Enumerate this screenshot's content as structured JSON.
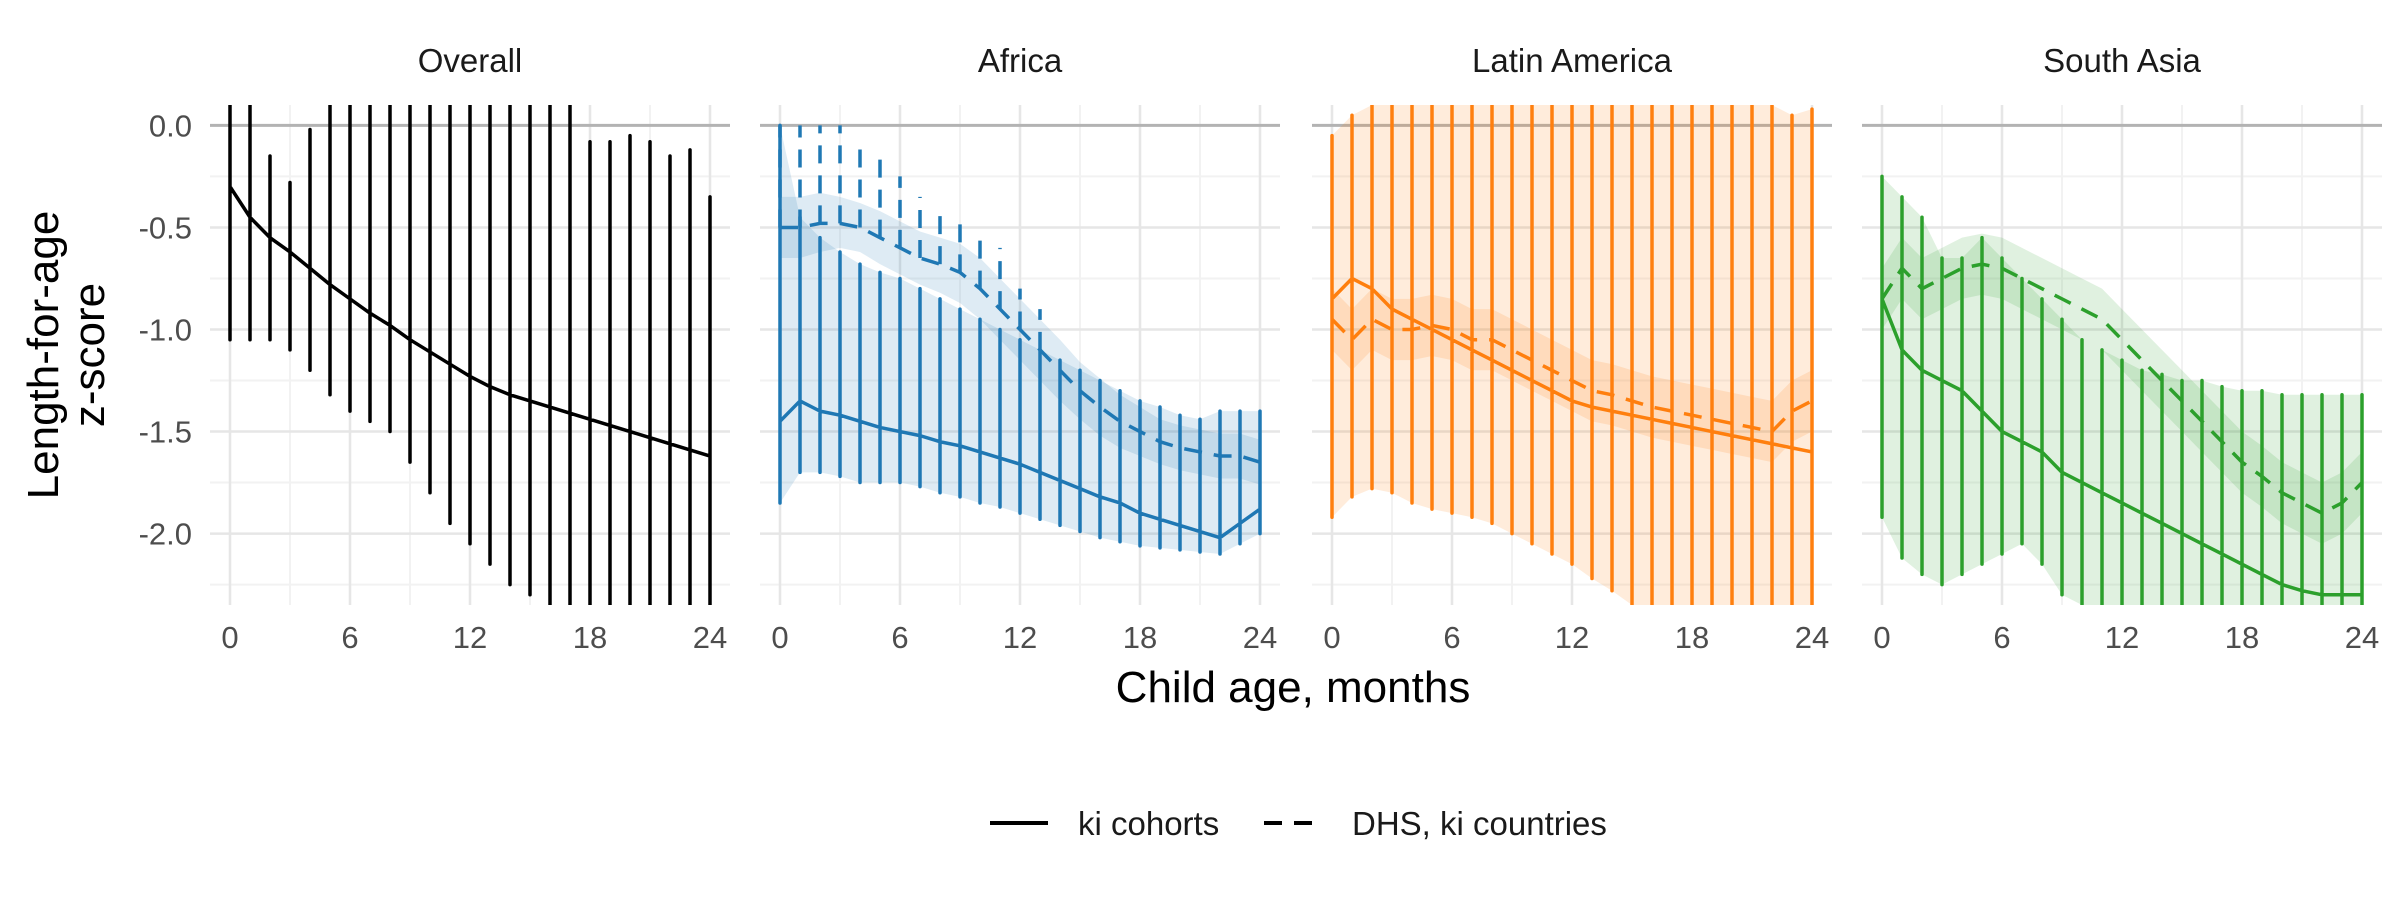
{
  "chart_data": {
    "type": "line",
    "xlabel": "Child age, months",
    "ylabel_lines": [
      "Length-for-age",
      "z-score"
    ],
    "xlim": [
      -1,
      25
    ],
    "ylim": [
      -2.35,
      0.1
    ],
    "x_ticks": [
      0,
      6,
      12,
      18,
      24
    ],
    "y_ticks": [
      0.0,
      -0.5,
      -1.0,
      -1.5,
      -2.0
    ],
    "y_tick_labels": [
      "0.0",
      "-0.5",
      "-1.0",
      "-1.5",
      "-2.0"
    ],
    "reference_line_y": 0,
    "grid": true,
    "legend_position": "bottom",
    "legend": [
      {
        "label": "ki cohorts",
        "linetype": "solid"
      },
      {
        "label": "DHS, ki countries",
        "linetype": "dashed"
      }
    ],
    "panels": [
      {
        "title": "Overall",
        "color": "#000000",
        "ki_cohorts": {
          "x": [
            0,
            1,
            2,
            3,
            4,
            5,
            6,
            7,
            8,
            9,
            10,
            11,
            12,
            13,
            14,
            15,
            16,
            17,
            18,
            19,
            20,
            21,
            22,
            23,
            24
          ],
          "y": [
            -0.3,
            -0.45,
            -0.55,
            -0.62,
            -0.7,
            -0.78,
            -0.85,
            -0.92,
            -0.98,
            -1.05,
            -1.11,
            -1.17,
            -1.23,
            -1.28,
            -1.32,
            -1.35,
            -1.38,
            -1.41,
            -1.44,
            -1.47,
            -1.5,
            -1.53,
            -1.56,
            -1.59,
            -1.62
          ],
          "lower": [
            -1.05,
            -1.05,
            -1.05,
            -1.1,
            -1.2,
            -1.32,
            -1.4,
            -1.45,
            -1.5,
            -1.65,
            -1.8,
            -1.95,
            -2.05,
            -2.15,
            -2.25,
            -2.3,
            -2.35,
            -2.35,
            -2.35,
            -2.35,
            -2.35,
            -2.35,
            -2.35,
            -2.35,
            -2.35
          ],
          "upper": [
            0.1,
            0.1,
            -0.15,
            -0.28,
            -0.02,
            0.1,
            0.1,
            0.1,
            0.1,
            0.1,
            0.1,
            0.1,
            0.1,
            0.1,
            0.1,
            0.1,
            0.1,
            0.1,
            -0.08,
            -0.08,
            -0.05,
            -0.08,
            -0.15,
            -0.12,
            -0.35
          ]
        }
      },
      {
        "title": "Africa",
        "color": "#1F78B4",
        "ki_cohorts": {
          "x": [
            0,
            1,
            2,
            3,
            4,
            5,
            6,
            7,
            8,
            9,
            10,
            11,
            12,
            13,
            14,
            15,
            16,
            17,
            18,
            19,
            20,
            21,
            22,
            23,
            24
          ],
          "y": [
            -1.45,
            -1.35,
            -1.4,
            -1.42,
            -1.45,
            -1.48,
            -1.5,
            -1.52,
            -1.55,
            -1.57,
            -1.6,
            -1.63,
            -1.66,
            -1.7,
            -1.74,
            -1.78,
            -1.82,
            -1.85,
            -1.9,
            -1.93,
            -1.96,
            -1.99,
            -2.02,
            -1.95,
            -1.88
          ],
          "lower": [
            -1.85,
            -1.7,
            -1.7,
            -1.72,
            -1.75,
            -1.75,
            -1.75,
            -1.77,
            -1.8,
            -1.82,
            -1.85,
            -1.87,
            -1.9,
            -1.93,
            -1.96,
            -1.99,
            -2.02,
            -2.04,
            -2.06,
            -2.07,
            -2.08,
            -2.09,
            -2.1,
            -2.05,
            -2.0
          ],
          "upper": [
            0.0,
            -0.45,
            -0.55,
            -0.62,
            -0.68,
            -0.72,
            -0.75,
            -0.8,
            -0.85,
            -0.9,
            -0.95,
            -1.0,
            -1.05,
            -1.1,
            -1.15,
            -1.2,
            -1.25,
            -1.3,
            -1.35,
            -1.38,
            -1.42,
            -1.44,
            -1.4,
            -1.4,
            -1.4
          ]
        },
        "dhs": {
          "x": [
            0,
            1,
            2,
            3,
            4,
            5,
            6,
            7,
            8,
            9,
            10,
            11,
            12,
            13,
            14,
            15,
            16,
            17,
            18,
            19,
            20,
            21,
            22,
            23,
            24
          ],
          "y": [
            -0.5,
            -0.5,
            -0.48,
            -0.48,
            -0.5,
            -0.55,
            -0.6,
            -0.65,
            -0.68,
            -0.72,
            -0.8,
            -0.9,
            -1.0,
            -1.1,
            -1.2,
            -1.3,
            -1.38,
            -1.45,
            -1.5,
            -1.55,
            -1.58,
            -1.6,
            -1.62,
            -1.62,
            -1.65
          ],
          "lower": [
            -0.65,
            -0.65,
            -0.62,
            -0.6,
            -0.62,
            -0.68,
            -0.73,
            -0.78,
            -0.82,
            -0.87,
            -0.95,
            -1.05,
            -1.15,
            -1.25,
            -1.35,
            -1.44,
            -1.52,
            -1.58,
            -1.62,
            -1.66,
            -1.69,
            -1.71,
            -1.73,
            -1.73,
            -1.76
          ],
          "upper": [
            -0.35,
            -0.35,
            -0.33,
            -0.35,
            -0.38,
            -0.42,
            -0.47,
            -0.52,
            -0.55,
            -0.58,
            -0.65,
            -0.75,
            -0.85,
            -0.95,
            -1.05,
            -1.16,
            -1.24,
            -1.32,
            -1.38,
            -1.44,
            -1.47,
            -1.49,
            -1.51,
            -1.51,
            -1.54
          ],
          "whisker_top": [
            0.0,
            0.0,
            0.0,
            0.0,
            -0.1,
            -0.15,
            -0.25,
            -0.35,
            -0.4,
            -0.45,
            -0.55,
            -0.6,
            -0.8,
            -0.9
          ]
        }
      },
      {
        "title": "Latin America",
        "color": "#FF7F0E",
        "ki_cohorts": {
          "x": [
            0,
            1,
            2,
            3,
            4,
            5,
            6,
            7,
            8,
            9,
            10,
            11,
            12,
            13,
            14,
            15,
            16,
            17,
            18,
            19,
            20,
            21,
            22,
            23,
            24
          ],
          "y": [
            -0.85,
            -0.75,
            -0.8,
            -0.9,
            -0.95,
            -1.0,
            -1.05,
            -1.1,
            -1.15,
            -1.2,
            -1.25,
            -1.3,
            -1.35,
            -1.38,
            -1.4,
            -1.42,
            -1.44,
            -1.46,
            -1.48,
            -1.5,
            -1.52,
            -1.54,
            -1.56,
            -1.58,
            -1.6
          ],
          "lower": [
            -1.92,
            -1.82,
            -1.78,
            -1.8,
            -1.85,
            -1.88,
            -1.9,
            -1.92,
            -1.95,
            -2.0,
            -2.05,
            -2.1,
            -2.15,
            -2.22,
            -2.28,
            -2.35,
            -2.35,
            -2.35,
            -2.35,
            -2.35,
            -2.35,
            -2.35,
            -2.35,
            -2.35,
            -2.35
          ],
          "upper": [
            -0.05,
            0.05,
            0.1,
            0.1,
            0.1,
            0.1,
            0.1,
            0.1,
            0.1,
            0.1,
            0.1,
            0.1,
            0.1,
            0.1,
            0.1,
            0.1,
            0.1,
            0.1,
            0.1,
            0.1,
            0.1,
            0.1,
            0.1,
            0.05,
            0.08
          ]
        },
        "dhs": {
          "x": [
            0,
            1,
            2,
            3,
            4,
            5,
            6,
            7,
            8,
            9,
            10,
            11,
            12,
            13,
            14,
            15,
            16,
            17,
            18,
            19,
            20,
            21,
            22,
            23,
            24
          ],
          "y": [
            -0.95,
            -1.05,
            -0.95,
            -1.0,
            -1.0,
            -0.98,
            -1.0,
            -1.05,
            -1.05,
            -1.1,
            -1.15,
            -1.2,
            -1.25,
            -1.3,
            -1.32,
            -1.35,
            -1.38,
            -1.4,
            -1.42,
            -1.44,
            -1.46,
            -1.48,
            -1.5,
            -1.4,
            -1.35
          ],
          "lower": [
            -1.1,
            -1.2,
            -1.1,
            -1.15,
            -1.15,
            -1.13,
            -1.15,
            -1.2,
            -1.2,
            -1.25,
            -1.3,
            -1.35,
            -1.4,
            -1.45,
            -1.47,
            -1.5,
            -1.53,
            -1.55,
            -1.57,
            -1.59,
            -1.61,
            -1.63,
            -1.65,
            -1.55,
            -1.5
          ],
          "upper": [
            -0.8,
            -0.9,
            -0.8,
            -0.85,
            -0.85,
            -0.83,
            -0.85,
            -0.9,
            -0.9,
            -0.95,
            -1.0,
            -1.05,
            -1.1,
            -1.15,
            -1.17,
            -1.2,
            -1.23,
            -1.25,
            -1.27,
            -1.29,
            -1.31,
            -1.33,
            -1.35,
            -1.25,
            -1.2
          ]
        }
      },
      {
        "title": "South Asia",
        "color": "#2CA02C",
        "ki_cohorts": {
          "x": [
            0,
            1,
            2,
            3,
            4,
            5,
            6,
            7,
            8,
            9,
            10,
            11,
            12,
            13,
            14,
            15,
            16,
            17,
            18,
            19,
            20,
            21,
            22,
            23,
            24
          ],
          "y": [
            -0.85,
            -1.1,
            -1.2,
            -1.25,
            -1.3,
            -1.4,
            -1.5,
            -1.55,
            -1.6,
            -1.7,
            -1.75,
            -1.8,
            -1.85,
            -1.9,
            -1.95,
            -2.0,
            -2.05,
            -2.1,
            -2.15,
            -2.2,
            -2.25,
            -2.28,
            -2.3,
            -2.3,
            -2.3
          ],
          "lower": [
            -1.92,
            -2.12,
            -2.2,
            -2.25,
            -2.2,
            -2.15,
            -2.1,
            -2.05,
            -2.15,
            -2.3,
            -2.35,
            -2.35,
            -2.35,
            -2.35,
            -2.35,
            -2.35,
            -2.35,
            -2.35,
            -2.35,
            -2.35,
            -2.35,
            -2.35,
            -2.35,
            -2.35,
            -2.35
          ],
          "upper": [
            -0.25,
            -0.35,
            -0.45,
            -0.65,
            -0.65,
            -0.55,
            -0.65,
            -0.75,
            -0.85,
            -0.95,
            -1.05,
            -1.1,
            -1.15,
            -1.2,
            -1.22,
            -1.25,
            -1.25,
            -1.28,
            -1.3,
            -1.3,
            -1.32,
            -1.32,
            -1.32,
            -1.32,
            -1.32
          ]
        },
        "dhs": {
          "x": [
            0,
            1,
            2,
            3,
            4,
            5,
            6,
            7,
            8,
            9,
            10,
            11,
            12,
            13,
            14,
            15,
            16,
            17,
            18,
            19,
            20,
            21,
            22,
            23,
            24
          ],
          "y": [
            -0.85,
            -0.7,
            -0.8,
            -0.75,
            -0.7,
            -0.68,
            -0.7,
            -0.75,
            -0.8,
            -0.85,
            -0.9,
            -0.95,
            -1.05,
            -1.15,
            -1.25,
            -1.35,
            -1.45,
            -1.55,
            -1.65,
            -1.72,
            -1.8,
            -1.85,
            -1.9,
            -1.85,
            -1.75
          ],
          "lower": [
            -1.0,
            -0.85,
            -0.95,
            -0.9,
            -0.85,
            -0.83,
            -0.85,
            -0.9,
            -0.95,
            -1.0,
            -1.05,
            -1.1,
            -1.2,
            -1.3,
            -1.4,
            -1.5,
            -1.6,
            -1.7,
            -1.8,
            -1.87,
            -1.95,
            -2.0,
            -2.05,
            -2.0,
            -1.9
          ],
          "upper": [
            -0.7,
            -0.55,
            -0.65,
            -0.6,
            -0.55,
            -0.53,
            -0.55,
            -0.6,
            -0.65,
            -0.7,
            -0.75,
            -0.8,
            -0.9,
            -1.0,
            -1.1,
            -1.2,
            -1.3,
            -1.4,
            -1.5,
            -1.57,
            -1.65,
            -1.7,
            -1.75,
            -1.7,
            -1.6
          ]
        }
      }
    ]
  }
}
